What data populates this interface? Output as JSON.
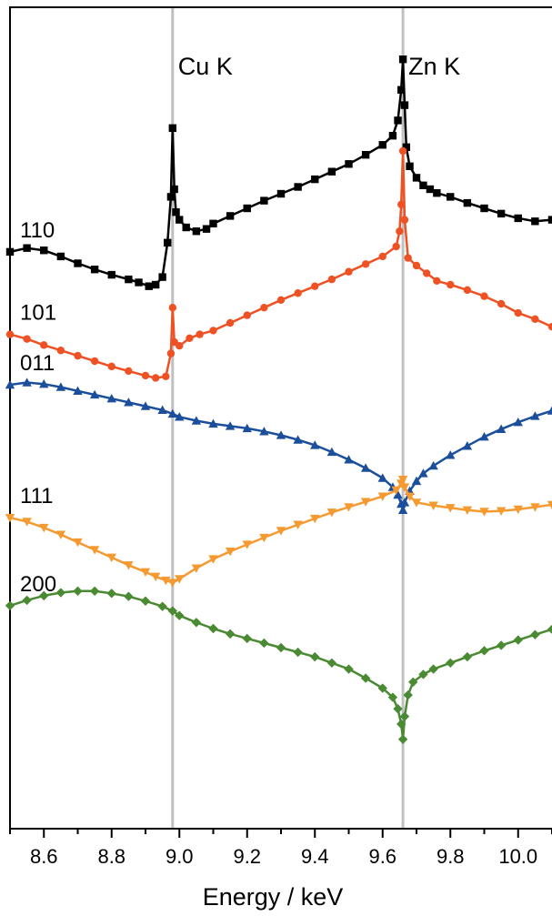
{
  "chart_data": {
    "type": "line",
    "xlabel": "Energy / keV",
    "ylabel": "",
    "xlim": [
      8.5,
      10.1
    ],
    "ylim": [
      0,
      100
    ],
    "x_ticks": [
      8.6,
      8.8,
      9.0,
      9.2,
      9.4,
      9.6,
      9.8,
      10.0
    ],
    "x_tick_labels": [
      "8.6",
      "8.8",
      "9.0",
      "9.2",
      "9.4",
      "9.6",
      "9.8",
      "10.0"
    ],
    "vlines": [
      {
        "x": 8.98,
        "label": "Cu K",
        "color": "#c0c0c0"
      },
      {
        "x": 9.66,
        "label": "Zn K",
        "color": "#c0c0c0"
      }
    ],
    "series": [
      {
        "name": "110",
        "color": "#000000",
        "marker": "square",
        "points": [
          [
            8.5,
            71.8
          ],
          [
            8.55,
            72.3
          ],
          [
            8.6,
            72.0
          ],
          [
            8.65,
            71.2
          ],
          [
            8.7,
            70.3
          ],
          [
            8.75,
            69.5
          ],
          [
            8.8,
            68.8
          ],
          [
            8.85,
            68.2
          ],
          [
            8.88,
            67.8
          ],
          [
            8.91,
            67.3
          ],
          [
            8.93,
            67.5
          ],
          [
            8.95,
            68.5
          ],
          [
            8.965,
            73.0
          ],
          [
            8.975,
            79.0
          ],
          [
            8.98,
            88.0
          ],
          [
            8.985,
            80.0
          ],
          [
            8.99,
            77.0
          ],
          [
            9.0,
            76.0
          ],
          [
            9.02,
            75.0
          ],
          [
            9.05,
            74.5
          ],
          [
            9.08,
            74.8
          ],
          [
            9.1,
            75.5
          ],
          [
            9.15,
            76.5
          ],
          [
            9.2,
            77.5
          ],
          [
            9.25,
            78.5
          ],
          [
            9.3,
            79.4
          ],
          [
            9.35,
            80.3
          ],
          [
            9.4,
            81.3
          ],
          [
            9.45,
            82.3
          ],
          [
            9.5,
            83.3
          ],
          [
            9.55,
            84.5
          ],
          [
            9.6,
            85.8
          ],
          [
            9.63,
            87.0
          ],
          [
            9.645,
            89.0
          ],
          [
            9.655,
            93.0
          ],
          [
            9.66,
            97.0
          ],
          [
            9.665,
            91.0
          ],
          [
            9.67,
            85.5
          ],
          [
            9.68,
            83.0
          ],
          [
            9.7,
            81.5
          ],
          [
            9.72,
            80.5
          ],
          [
            9.74,
            80.0
          ],
          [
            9.76,
            79.5
          ],
          [
            9.8,
            79.0
          ],
          [
            9.85,
            78.2
          ],
          [
            9.9,
            77.5
          ],
          [
            9.95,
            76.8
          ],
          [
            10.0,
            76.2
          ],
          [
            10.05,
            75.8
          ],
          [
            10.1,
            76.0
          ]
        ]
      },
      {
        "name": "101",
        "color": "#ee5124",
        "marker": "circle",
        "points": [
          [
            8.5,
            61.0
          ],
          [
            8.55,
            60.4
          ],
          [
            8.6,
            59.6
          ],
          [
            8.65,
            58.9
          ],
          [
            8.7,
            58.2
          ],
          [
            8.75,
            57.5
          ],
          [
            8.8,
            56.8
          ],
          [
            8.85,
            56.2
          ],
          [
            8.9,
            55.6
          ],
          [
            8.93,
            55.3
          ],
          [
            8.96,
            55.5
          ],
          [
            8.975,
            58.5
          ],
          [
            8.98,
            64.5
          ],
          [
            8.985,
            60.0
          ],
          [
            9.0,
            59.5
          ],
          [
            9.03,
            60.5
          ],
          [
            9.06,
            61.0
          ],
          [
            9.1,
            61.5
          ],
          [
            9.15,
            62.5
          ],
          [
            9.2,
            63.5
          ],
          [
            9.25,
            64.5
          ],
          [
            9.3,
            65.5
          ],
          [
            9.35,
            66.4
          ],
          [
            9.4,
            67.3
          ],
          [
            9.45,
            68.2
          ],
          [
            9.5,
            69.2
          ],
          [
            9.55,
            70.2
          ],
          [
            9.6,
            71.2
          ],
          [
            9.64,
            72.5
          ],
          [
            9.65,
            74.5
          ],
          [
            9.655,
            78.0
          ],
          [
            9.66,
            85.0
          ],
          [
            9.665,
            76.0
          ],
          [
            9.675,
            71.0
          ],
          [
            9.7,
            70.0
          ],
          [
            9.73,
            69.0
          ],
          [
            9.76,
            68.0
          ],
          [
            9.8,
            67.5
          ],
          [
            9.85,
            66.8
          ],
          [
            9.9,
            66.0
          ],
          [
            9.95,
            65.0
          ],
          [
            10.0,
            63.8
          ],
          [
            10.05,
            63.0
          ],
          [
            10.1,
            62.0
          ]
        ]
      },
      {
        "name": "011",
        "color": "#1b4f9c",
        "marker": "triangle-up",
        "points": [
          [
            8.5,
            54.4
          ],
          [
            8.55,
            54.7
          ],
          [
            8.6,
            54.5
          ],
          [
            8.65,
            54.1
          ],
          [
            8.7,
            53.6
          ],
          [
            8.75,
            53.1
          ],
          [
            8.8,
            52.6
          ],
          [
            8.85,
            52.1
          ],
          [
            8.9,
            51.6
          ],
          [
            8.95,
            51.1
          ],
          [
            8.98,
            50.6
          ],
          [
            9.0,
            50.2
          ],
          [
            9.05,
            49.7
          ],
          [
            9.1,
            49.3
          ],
          [
            9.15,
            49.0
          ],
          [
            9.2,
            48.7
          ],
          [
            9.25,
            48.3
          ],
          [
            9.3,
            47.8
          ],
          [
            9.35,
            47.2
          ],
          [
            9.4,
            46.5
          ],
          [
            9.45,
            45.6
          ],
          [
            9.5,
            44.6
          ],
          [
            9.55,
            43.5
          ],
          [
            9.6,
            42.2
          ],
          [
            9.63,
            41.0
          ],
          [
            9.645,
            40.0
          ],
          [
            9.655,
            38.8
          ],
          [
            9.66,
            38.0
          ],
          [
            9.665,
            39.0
          ],
          [
            9.68,
            40.5
          ],
          [
            9.7,
            41.8
          ],
          [
            9.72,
            42.8
          ],
          [
            9.75,
            43.8
          ],
          [
            9.8,
            45.2
          ],
          [
            9.85,
            46.4
          ],
          [
            9.9,
            47.6
          ],
          [
            9.95,
            48.6
          ],
          [
            10.0,
            49.5
          ],
          [
            10.05,
            50.3
          ],
          [
            10.1,
            51.0
          ]
        ]
      },
      {
        "name": "111",
        "color": "#f59a31",
        "marker": "triangle-down",
        "points": [
          [
            8.5,
            37.0
          ],
          [
            8.55,
            36.5
          ],
          [
            8.6,
            35.7
          ],
          [
            8.65,
            34.8
          ],
          [
            8.7,
            33.8
          ],
          [
            8.75,
            32.8
          ],
          [
            8.8,
            31.8
          ],
          [
            8.85,
            30.8
          ],
          [
            8.9,
            29.9
          ],
          [
            8.93,
            29.3
          ],
          [
            8.96,
            28.8
          ],
          [
            8.98,
            28.5
          ],
          [
            9.0,
            29.0
          ],
          [
            9.05,
            30.4
          ],
          [
            9.1,
            31.6
          ],
          [
            9.15,
            32.6
          ],
          [
            9.2,
            33.5
          ],
          [
            9.25,
            34.4
          ],
          [
            9.3,
            35.3
          ],
          [
            9.35,
            36.1
          ],
          [
            9.4,
            36.9
          ],
          [
            9.45,
            37.7
          ],
          [
            9.5,
            38.4
          ],
          [
            9.55,
            39.1
          ],
          [
            9.6,
            39.8
          ],
          [
            9.64,
            40.6
          ],
          [
            9.655,
            41.5
          ],
          [
            9.66,
            42.0
          ],
          [
            9.665,
            41.0
          ],
          [
            9.68,
            39.8
          ],
          [
            9.7,
            39.0
          ],
          [
            9.75,
            38.6
          ],
          [
            9.8,
            38.3
          ],
          [
            9.85,
            38.0
          ],
          [
            9.9,
            37.8
          ],
          [
            9.95,
            37.9
          ],
          [
            10.0,
            38.1
          ],
          [
            10.05,
            38.4
          ],
          [
            10.1,
            38.7
          ]
        ]
      },
      {
        "name": "200",
        "color": "#4a8a33",
        "marker": "diamond",
        "points": [
          [
            8.5,
            25.5
          ],
          [
            8.55,
            26.2
          ],
          [
            8.6,
            26.8
          ],
          [
            8.65,
            27.2
          ],
          [
            8.7,
            27.4
          ],
          [
            8.75,
            27.4
          ],
          [
            8.8,
            27.1
          ],
          [
            8.85,
            26.7
          ],
          [
            8.9,
            26.1
          ],
          [
            8.95,
            25.4
          ],
          [
            8.98,
            24.8
          ],
          [
            9.0,
            24.2
          ],
          [
            9.05,
            23.3
          ],
          [
            9.1,
            22.5
          ],
          [
            9.15,
            21.8
          ],
          [
            9.2,
            21.2
          ],
          [
            9.25,
            20.6
          ],
          [
            9.3,
            20.0
          ],
          [
            9.35,
            19.4
          ],
          [
            9.4,
            18.8
          ],
          [
            9.45,
            18.0
          ],
          [
            9.5,
            17.2
          ],
          [
            9.55,
            16.0
          ],
          [
            9.6,
            14.7
          ],
          [
            9.63,
            13.5
          ],
          [
            9.645,
            12.0
          ],
          [
            9.655,
            10.0
          ],
          [
            9.66,
            8.0
          ],
          [
            9.665,
            11.0
          ],
          [
            9.675,
            13.8
          ],
          [
            9.69,
            15.5
          ],
          [
            9.72,
            16.5
          ],
          [
            9.75,
            17.2
          ],
          [
            9.8,
            18.0
          ],
          [
            9.85,
            18.8
          ],
          [
            9.9,
            19.6
          ],
          [
            9.95,
            20.3
          ],
          [
            10.0,
            21.0
          ],
          [
            10.05,
            21.7
          ],
          [
            10.1,
            22.4
          ]
        ]
      }
    ]
  }
}
